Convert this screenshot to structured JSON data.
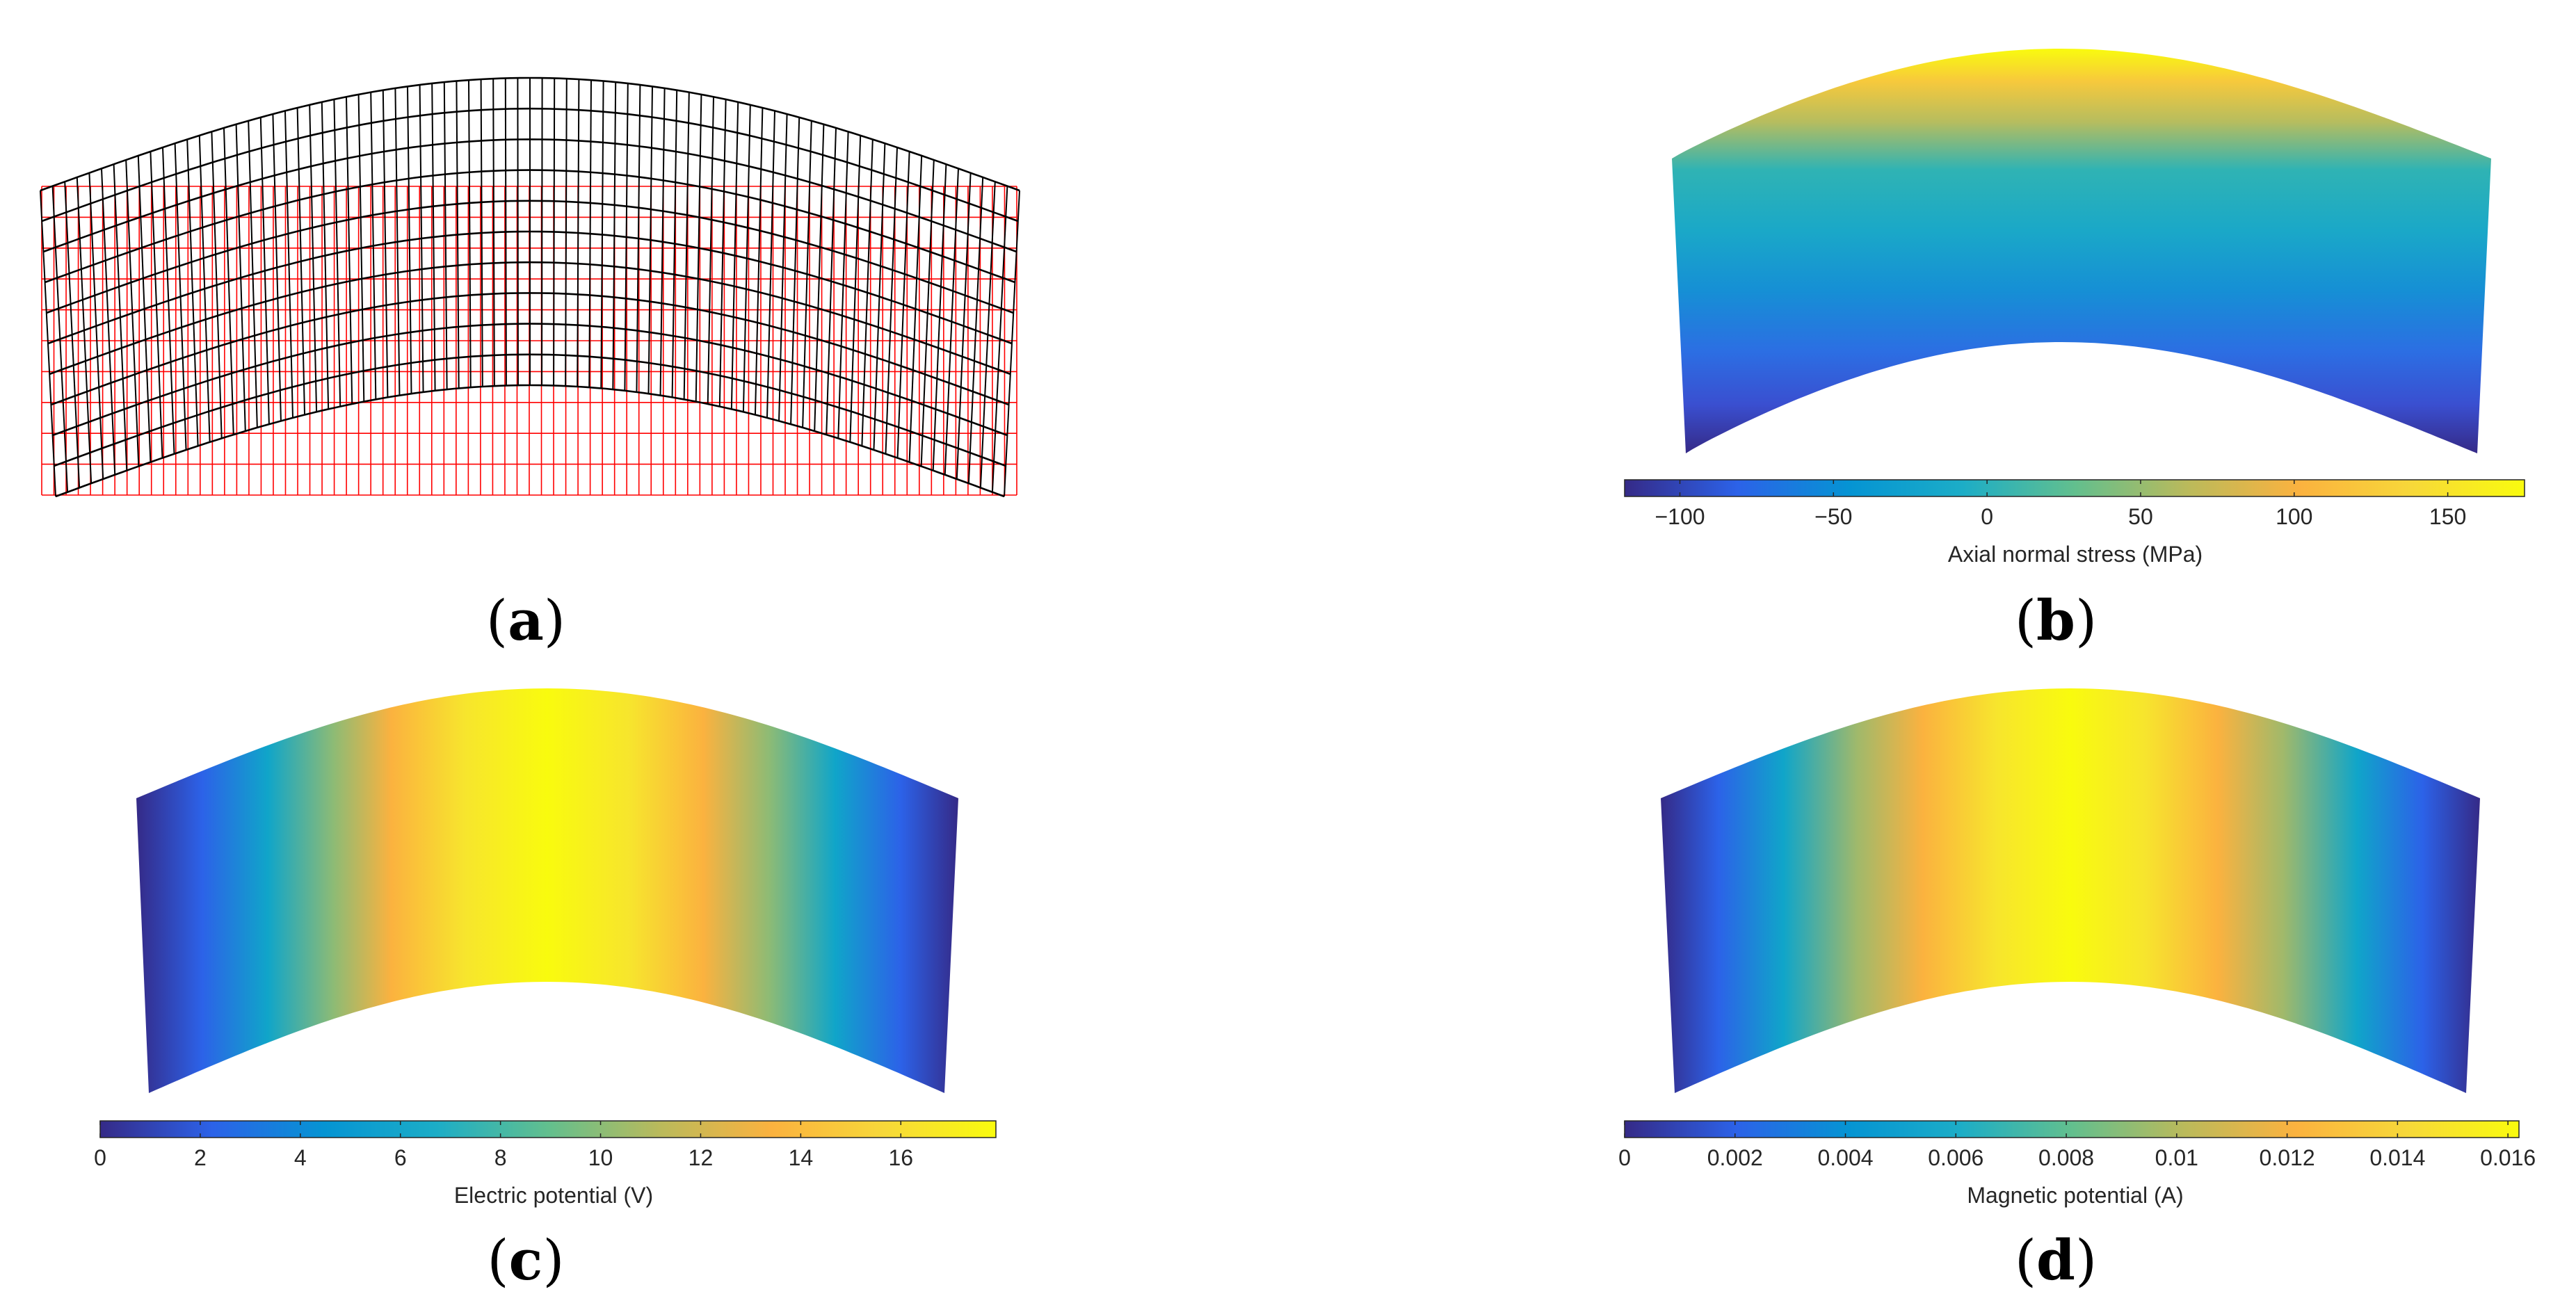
{
  "panels": [
    {
      "id": "a",
      "letter": "a"
    },
    {
      "id": "b",
      "letter": "b"
    },
    {
      "id": "c",
      "letter": "c"
    },
    {
      "id": "d",
      "letter": "d"
    }
  ],
  "mesh": {
    "columns": 80,
    "rows": 10,
    "deformed_color": "#000000",
    "undeformed_color": "#ff0000"
  },
  "colorbars": {
    "b": {
      "label": "Axial normal stress (MPa)",
      "min": -118,
      "max": 175,
      "ticks": [
        {
          "value": -100,
          "label": "−100"
        },
        {
          "value": -50,
          "label": "−50"
        },
        {
          "value": 0,
          "label": "0"
        },
        {
          "value": 50,
          "label": "50"
        },
        {
          "value": 100,
          "label": "100"
        },
        {
          "value": 150,
          "label": "150"
        }
      ]
    },
    "c": {
      "label": "Electric potential (V)",
      "min": 0,
      "max": 17.9,
      "ticks": [
        {
          "value": 0,
          "label": "0"
        },
        {
          "value": 2,
          "label": "2"
        },
        {
          "value": 4,
          "label": "4"
        },
        {
          "value": 6,
          "label": "6"
        },
        {
          "value": 8,
          "label": "8"
        },
        {
          "value": 10,
          "label": "10"
        },
        {
          "value": 12,
          "label": "12"
        },
        {
          "value": 14,
          "label": "14"
        },
        {
          "value": 16,
          "label": "16"
        }
      ]
    },
    "d": {
      "label": "Magnetic potential (A)",
      "min": 0,
      "max": 0.0162,
      "ticks": [
        {
          "value": 0,
          "label": "0"
        },
        {
          "value": 0.002,
          "label": "0.002"
        },
        {
          "value": 0.004,
          "label": "0.004"
        },
        {
          "value": 0.006,
          "label": "0.006"
        },
        {
          "value": 0.008,
          "label": "0.008"
        },
        {
          "value": 0.01,
          "label": "0.01"
        },
        {
          "value": 0.012,
          "label": "0.012"
        },
        {
          "value": 0.014,
          "label": "0.014"
        },
        {
          "value": 0.016,
          "label": "0.016"
        }
      ]
    }
  },
  "colormap": {
    "name": "parula",
    "stops": [
      "#352a87",
      "#2c62e8",
      "#0594d3",
      "#1cadc7",
      "#62bf8e",
      "#baba5b",
      "#fbb23f",
      "#f7d839",
      "#f9fb0e"
    ]
  }
}
